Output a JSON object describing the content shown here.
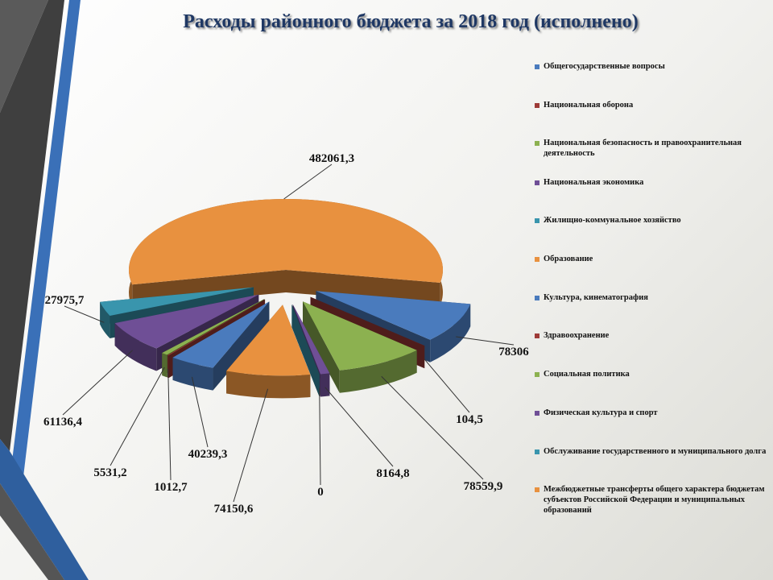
{
  "chart_data": {
    "type": "pie",
    "title": "Расходы районного бюджета за 2018 год (исполнено)",
    "categories": [
      "Общегосударственные вопросы",
      "Национальная оборона",
      "Национальная безопасность и правоохранительная деятельность",
      "Национальная экономика",
      "Жилищно-коммунальное хозяйство",
      "Образование",
      "Культура, кинематография",
      "Здравоохранение",
      "Социальная политика",
      "Физическая культура и спорт",
      "Обслуживание государственного и муниципального долга",
      "Межбюджетные трансферты общего характера бюджетам субъектов Российской Федерации и муниципальных образований"
    ],
    "values": [
      40239.3,
      1012.7,
      5531.2,
      61136.4,
      27975.7,
      482061.3,
      78306,
      104.5,
      78559.9,
      8164.8,
      0,
      74150.6
    ],
    "value_labels": [
      "40239,3",
      "1012,7",
      "5531,2",
      "61136,4",
      "27975,7",
      "482061,3",
      "78306",
      "104,5",
      "78559,9",
      "8164,8",
      "0",
      "74150,6"
    ],
    "colors": [
      "#4a7bbd",
      "#9e3b37",
      "#8cb150",
      "#6f4f96",
      "#3995ad",
      "#e8913f",
      "#4a7bbd",
      "#9e3b37",
      "#8cb150",
      "#6f4f96",
      "#3995ad",
      "#e8913f"
    ],
    "legend": "right"
  }
}
